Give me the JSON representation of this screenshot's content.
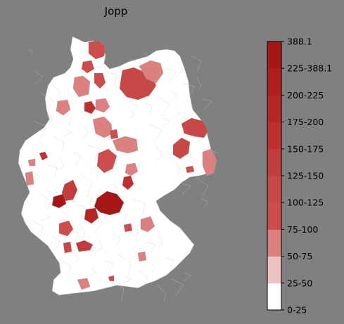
{
  "map": {
    "title": "Jopp",
    "type": "choropleth",
    "region": "Germany (districts)",
    "base_color": "#ffffff",
    "background": "#808080",
    "hotspots": [
      {
        "id": "north-coast-1",
        "level": 3
      },
      {
        "id": "north-1",
        "level": 3
      },
      {
        "id": "north-2",
        "level": 2
      },
      {
        "id": "north-3",
        "level": 3
      },
      {
        "id": "north-4",
        "level": 2
      },
      {
        "id": "northeast-1",
        "level": 4
      },
      {
        "id": "northeast-2",
        "level": 2
      },
      {
        "id": "north-central-1",
        "level": 6
      },
      {
        "id": "central-1",
        "level": 2
      },
      {
        "id": "central-2",
        "level": 2
      },
      {
        "id": "central-3",
        "level": 3
      },
      {
        "id": "central-4",
        "level": 2
      },
      {
        "id": "east-1",
        "level": 4
      },
      {
        "id": "east-2",
        "level": 4
      },
      {
        "id": "east-3",
        "level": 2
      },
      {
        "id": "east-4",
        "level": 3
      },
      {
        "id": "west-1",
        "level": 6
      },
      {
        "id": "west-2",
        "level": 2
      },
      {
        "id": "west-3",
        "level": 2
      },
      {
        "id": "center-west-1",
        "level": 5
      },
      {
        "id": "center-west-2",
        "level": 9
      },
      {
        "id": "center-1",
        "level": 9
      },
      {
        "id": "center-2",
        "level": 7
      },
      {
        "id": "center-3",
        "level": 6
      },
      {
        "id": "center-4",
        "level": 2
      },
      {
        "id": "center-5",
        "level": 3
      },
      {
        "id": "center-6",
        "level": 5
      },
      {
        "id": "south-1",
        "level": 3
      },
      {
        "id": "south-2",
        "level": 4
      },
      {
        "id": "south-3",
        "level": 2
      },
      {
        "id": "south-4",
        "level": 3
      },
      {
        "id": "south-5",
        "level": 2
      },
      {
        "id": "south-6",
        "level": 2
      },
      {
        "id": "south-7",
        "level": 3
      }
    ]
  },
  "colorbar": {
    "levels": [
      "0-25",
      "25-50",
      "50-75",
      "75-100",
      "100-125",
      "125-150",
      "150-175",
      "175-200",
      "200-225",
      "225-388.1",
      "388.1"
    ],
    "colors": [
      "#ffffff",
      "#efc0c0",
      "#dc8080",
      "#cd4c4c",
      "#c84848",
      "#c33c3c",
      "#be3030",
      "#b72626",
      "#b01e1e",
      "#a51616",
      "#96101c"
    ]
  }
}
